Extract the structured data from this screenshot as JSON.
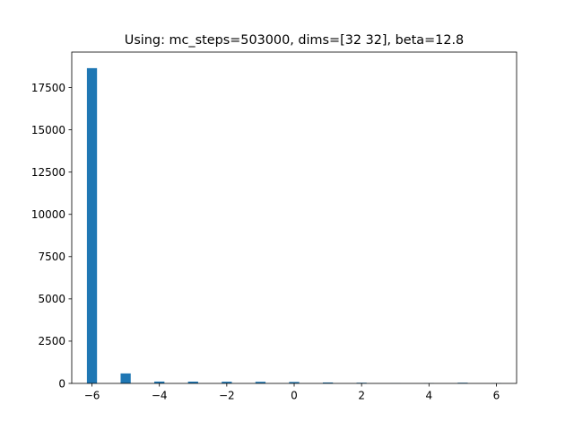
{
  "chart_data": {
    "type": "bar",
    "title": "Using: mc_steps=503000, dims=[32 32], beta=12.8",
    "xlabel": "",
    "ylabel": "",
    "xlim": [
      -6.6,
      6.6
    ],
    "ylim": [
      0,
      19600
    ],
    "bar_width": 0.3,
    "bar_color": "#1f77b4",
    "grid": false,
    "x_ticks": [
      -6,
      -4,
      -2,
      0,
      2,
      4,
      6
    ],
    "x_tick_labels": [
      "−6",
      "−4",
      "−2",
      "0",
      "2",
      "4",
      "6"
    ],
    "y_ticks": [
      0,
      2500,
      5000,
      7500,
      10000,
      12500,
      15000,
      17500
    ],
    "y_tick_labels": [
      "0",
      "2500",
      "5000",
      "7500",
      "10000",
      "12500",
      "15000",
      "17500"
    ],
    "bars": [
      {
        "x": -6,
        "y": 18650
      },
      {
        "x": -5,
        "y": 590
      },
      {
        "x": -4,
        "y": 110
      },
      {
        "x": -3,
        "y": 105
      },
      {
        "x": -2,
        "y": 100
      },
      {
        "x": -1,
        "y": 95
      },
      {
        "x": 0,
        "y": 85
      },
      {
        "x": 1,
        "y": 55
      },
      {
        "x": 2,
        "y": 40
      },
      {
        "x": 3,
        "y": 10
      },
      {
        "x": 4,
        "y": 10
      },
      {
        "x": 5,
        "y": 40
      },
      {
        "x": 6,
        "y": 10
      }
    ]
  }
}
